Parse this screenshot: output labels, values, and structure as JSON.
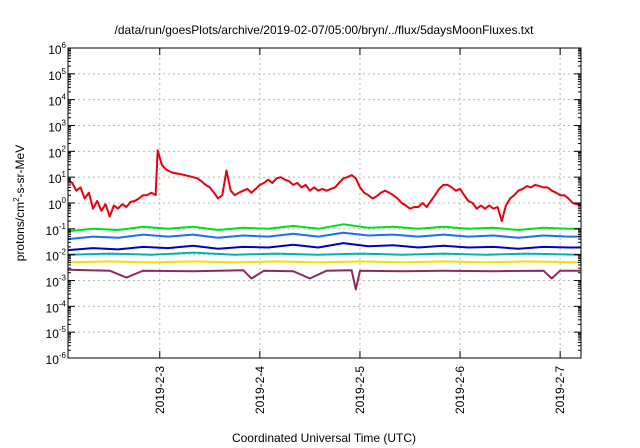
{
  "chart_data": {
    "type": "line",
    "title": "/data/run/goesPlots/archive/2019-02-07/05:00/bryn/../flux/5daysMoonFluxes.txt",
    "xlabel": "Coordinated Universal Time (UTC)",
    "ylabel": "protons/cm²-s-sr-MeV",
    "ylabel_parts": {
      "pre": "protons/cm",
      "sup": "2",
      "post": "-s-sr-MeV"
    },
    "y_scale": "log",
    "ylim": [
      1e-06,
      1000000.0
    ],
    "y_ticks": [
      {
        "exp": -6,
        "base": "10",
        "sup": "-6"
      },
      {
        "exp": -5,
        "base": "10",
        "sup": "-5"
      },
      {
        "exp": -4,
        "base": "10",
        "sup": "-4"
      },
      {
        "exp": -3,
        "base": "10",
        "sup": "-3"
      },
      {
        "exp": -2,
        "base": "10",
        "sup": "-2"
      },
      {
        "exp": -1,
        "base": "10",
        "sup": "-1"
      },
      {
        "exp": 0,
        "base": "10",
        "sup": "0"
      },
      {
        "exp": 1,
        "base": "10",
        "sup": "1"
      },
      {
        "exp": 2,
        "base": "10",
        "sup": "2"
      },
      {
        "exp": 3,
        "base": "10",
        "sup": "3"
      },
      {
        "exp": 4,
        "base": "10",
        "sup": "4"
      },
      {
        "exp": 5,
        "base": "10",
        "sup": "5"
      },
      {
        "exp": 6,
        "base": "10",
        "sup": "6"
      }
    ],
    "xlim": [
      "2019-02-02T02:00",
      "2019-02-07T05:00"
    ],
    "x_ticks": [
      {
        "label": "2019-2-3",
        "t": "2019-02-03T00:00"
      },
      {
        "label": "2019-2-4",
        "t": "2019-02-04T00:00"
      },
      {
        "label": "2019-2-5",
        "t": "2019-02-05T00:00"
      },
      {
        "label": "2019-2-6",
        "t": "2019-02-06T00:00"
      },
      {
        "label": "2019-2-7",
        "t": "2019-02-07T00:00"
      }
    ],
    "grid": true,
    "series": [
      {
        "color": "#e8000b",
        "values": [
          [
            "2019-02-02T02:00",
            8
          ],
          [
            "2019-02-02T03:00",
            6
          ],
          [
            "2019-02-02T04:00",
            3
          ],
          [
            "2019-02-02T05:00",
            4
          ],
          [
            "2019-02-02T06:00",
            1.5
          ],
          [
            "2019-02-02T07:00",
            2.5
          ],
          [
            "2019-02-02T08:00",
            0.6
          ],
          [
            "2019-02-02T09:00",
            1.2
          ],
          [
            "2019-02-02T10:00",
            0.5
          ],
          [
            "2019-02-02T11:00",
            0.9
          ],
          [
            "2019-02-02T12:00",
            0.3
          ],
          [
            "2019-02-02T13:00",
            0.8
          ],
          [
            "2019-02-02T14:00",
            0.6
          ],
          [
            "2019-02-02T15:00",
            0.9
          ],
          [
            "2019-02-02T16:00",
            0.7
          ],
          [
            "2019-02-02T17:00",
            1.1
          ],
          [
            "2019-02-02T18:00",
            1.2
          ],
          [
            "2019-02-02T19:00",
            1.5
          ],
          [
            "2019-02-02T20:00",
            2.0
          ],
          [
            "2019-02-02T21:00",
            2.0
          ],
          [
            "2019-02-02T22:00",
            2.5
          ],
          [
            "2019-02-02T23:00",
            2.0
          ],
          [
            "2019-02-02T23:30",
            110
          ],
          [
            "2019-02-03T00:30",
            30
          ],
          [
            "2019-02-03T01:30",
            20
          ],
          [
            "2019-02-03T02:00",
            18
          ],
          [
            "2019-02-03T03:00",
            15
          ],
          [
            "2019-02-03T04:00",
            14
          ],
          [
            "2019-02-03T05:00",
            13
          ],
          [
            "2019-02-03T06:00",
            12
          ],
          [
            "2019-02-03T07:00",
            11
          ],
          [
            "2019-02-03T08:00",
            10
          ],
          [
            "2019-02-03T09:00",
            9
          ],
          [
            "2019-02-03T10:00",
            7
          ],
          [
            "2019-02-03T11:00",
            5
          ],
          [
            "2019-02-03T12:00",
            4
          ],
          [
            "2019-02-03T13:00",
            2.5
          ],
          [
            "2019-02-03T14:00",
            1.5
          ],
          [
            "2019-02-03T15:00",
            2
          ],
          [
            "2019-02-03T16:00",
            18
          ],
          [
            "2019-02-03T17:00",
            3
          ],
          [
            "2019-02-03T18:00",
            2
          ],
          [
            "2019-02-03T19:00",
            2.5
          ],
          [
            "2019-02-03T20:00",
            3
          ],
          [
            "2019-02-03T21:00",
            3.5
          ],
          [
            "2019-02-03T22:00",
            2.5
          ],
          [
            "2019-02-03T23:00",
            3.5
          ],
          [
            "2019-02-04T00:00",
            5
          ],
          [
            "2019-02-04T01:00",
            6
          ],
          [
            "2019-02-04T02:00",
            8
          ],
          [
            "2019-02-04T03:00",
            6
          ],
          [
            "2019-02-04T04:00",
            9
          ],
          [
            "2019-02-04T05:00",
            10
          ],
          [
            "2019-02-04T06:00",
            8
          ],
          [
            "2019-02-04T07:00",
            7
          ],
          [
            "2019-02-04T08:00",
            5
          ],
          [
            "2019-02-04T09:00",
            6
          ],
          [
            "2019-02-04T10:00",
            4
          ],
          [
            "2019-02-04T11:00",
            5
          ],
          [
            "2019-02-04T12:00",
            3
          ],
          [
            "2019-02-04T13:00",
            4
          ],
          [
            "2019-02-04T14:00",
            3
          ],
          [
            "2019-02-04T15:00",
            3.5
          ],
          [
            "2019-02-04T16:00",
            3
          ],
          [
            "2019-02-04T17:00",
            3.5
          ],
          [
            "2019-02-04T18:00",
            4
          ],
          [
            "2019-02-04T19:00",
            6
          ],
          [
            "2019-02-04T20:00",
            9
          ],
          [
            "2019-02-04T21:00",
            10
          ],
          [
            "2019-02-04T22:00",
            12
          ],
          [
            "2019-02-04T23:00",
            9
          ],
          [
            "2019-02-05T00:00",
            4
          ],
          [
            "2019-02-05T01:00",
            2.5
          ],
          [
            "2019-02-05T02:00",
            2
          ],
          [
            "2019-02-05T03:00",
            1.5
          ],
          [
            "2019-02-05T04:00",
            1.8
          ],
          [
            "2019-02-05T05:00",
            2.5
          ],
          [
            "2019-02-05T06:00",
            3
          ],
          [
            "2019-02-05T07:00",
            2.5
          ],
          [
            "2019-02-05T08:00",
            2
          ],
          [
            "2019-02-05T09:00",
            1.5
          ],
          [
            "2019-02-05T10:00",
            1
          ],
          [
            "2019-02-05T11:00",
            0.8
          ],
          [
            "2019-02-05T12:00",
            0.6
          ],
          [
            "2019-02-05T13:00",
            0.7
          ],
          [
            "2019-02-05T14:00",
            0.7
          ],
          [
            "2019-02-05T15:00",
            1
          ],
          [
            "2019-02-05T16:00",
            0.7
          ],
          [
            "2019-02-05T17:00",
            1.2
          ],
          [
            "2019-02-05T18:00",
            2
          ],
          [
            "2019-02-05T19:00",
            3.5
          ],
          [
            "2019-02-05T20:00",
            5
          ],
          [
            "2019-02-05T21:00",
            5
          ],
          [
            "2019-02-05T22:00",
            4
          ],
          [
            "2019-02-05T23:00",
            3
          ],
          [
            "2019-02-06T00:00",
            3.5
          ],
          [
            "2019-02-06T01:00",
            2
          ],
          [
            "2019-02-06T02:00",
            1.2
          ],
          [
            "2019-02-06T03:00",
            1
          ],
          [
            "2019-02-06T04:00",
            0.6
          ],
          [
            "2019-02-06T05:00",
            0.8
          ],
          [
            "2019-02-06T06:00",
            0.6
          ],
          [
            "2019-02-06T07:00",
            0.8
          ],
          [
            "2019-02-06T08:00",
            0.6
          ],
          [
            "2019-02-06T09:00",
            0.7
          ],
          [
            "2019-02-06T10:00",
            0.2
          ],
          [
            "2019-02-06T11:00",
            0.8
          ],
          [
            "2019-02-06T12:00",
            1.5
          ],
          [
            "2019-02-06T13:00",
            2
          ],
          [
            "2019-02-06T14:00",
            3
          ],
          [
            "2019-02-06T15:00",
            3.5
          ],
          [
            "2019-02-06T16:00",
            4.5
          ],
          [
            "2019-02-06T17:00",
            4
          ],
          [
            "2019-02-06T18:00",
            5
          ],
          [
            "2019-02-06T19:00",
            4.5
          ],
          [
            "2019-02-06T20:00",
            4
          ],
          [
            "2019-02-06T21:00",
            4
          ],
          [
            "2019-02-06T22:00",
            3
          ],
          [
            "2019-02-06T23:00",
            2.5
          ],
          [
            "2019-02-07T00:00",
            2
          ],
          [
            "2019-02-07T01:00",
            2
          ],
          [
            "2019-02-07T02:00",
            1.5
          ],
          [
            "2019-02-07T03:00",
            1.0
          ],
          [
            "2019-02-07T04:00",
            0.9
          ],
          [
            "2019-02-07T05:00",
            0.8
          ]
        ]
      },
      {
        "color": "#00e01a",
        "values": [
          [
            "2019-02-02T02:00",
            0.08
          ],
          [
            "2019-02-02T08:00",
            0.1
          ],
          [
            "2019-02-02T14:00",
            0.09
          ],
          [
            "2019-02-02T20:00",
            0.12
          ],
          [
            "2019-02-03T02:00",
            0.1
          ],
          [
            "2019-02-03T08:00",
            0.12
          ],
          [
            "2019-02-03T14:00",
            0.09
          ],
          [
            "2019-02-03T20:00",
            0.11
          ],
          [
            "2019-02-04T02:00",
            0.1
          ],
          [
            "2019-02-04T08:00",
            0.13
          ],
          [
            "2019-02-04T14:00",
            0.1
          ],
          [
            "2019-02-04T20:00",
            0.15
          ],
          [
            "2019-02-05T02:00",
            0.11
          ],
          [
            "2019-02-05T08:00",
            0.12
          ],
          [
            "2019-02-05T14:00",
            0.1
          ],
          [
            "2019-02-05T20:00",
            0.12
          ],
          [
            "2019-02-06T02:00",
            0.1
          ],
          [
            "2019-02-06T08:00",
            0.11
          ],
          [
            "2019-02-06T14:00",
            0.09
          ],
          [
            "2019-02-06T20:00",
            0.11
          ],
          [
            "2019-02-07T02:00",
            0.1
          ],
          [
            "2019-02-07T05:00",
            0.1
          ]
        ]
      },
      {
        "color": "#1e6cff",
        "values": [
          [
            "2019-02-02T02:00",
            0.04
          ],
          [
            "2019-02-02T08:00",
            0.05
          ],
          [
            "2019-02-02T14:00",
            0.045
          ],
          [
            "2019-02-02T20:00",
            0.06
          ],
          [
            "2019-02-03T02:00",
            0.05
          ],
          [
            "2019-02-03T08:00",
            0.06
          ],
          [
            "2019-02-03T14:00",
            0.045
          ],
          [
            "2019-02-03T20:00",
            0.055
          ],
          [
            "2019-02-04T02:00",
            0.05
          ],
          [
            "2019-02-04T08:00",
            0.065
          ],
          [
            "2019-02-04T14:00",
            0.05
          ],
          [
            "2019-02-04T20:00",
            0.07
          ],
          [
            "2019-02-05T02:00",
            0.055
          ],
          [
            "2019-02-05T08:00",
            0.06
          ],
          [
            "2019-02-05T14:00",
            0.05
          ],
          [
            "2019-02-05T20:00",
            0.06
          ],
          [
            "2019-02-06T02:00",
            0.05
          ],
          [
            "2019-02-06T08:00",
            0.055
          ],
          [
            "2019-02-06T14:00",
            0.045
          ],
          [
            "2019-02-06T20:00",
            0.055
          ],
          [
            "2019-02-07T02:00",
            0.05
          ],
          [
            "2019-02-07T05:00",
            0.05
          ]
        ]
      },
      {
        "color": "#0000c8",
        "values": [
          [
            "2019-02-02T02:00",
            0.015
          ],
          [
            "2019-02-02T08:00",
            0.018
          ],
          [
            "2019-02-02T14:00",
            0.016
          ],
          [
            "2019-02-02T20:00",
            0.02
          ],
          [
            "2019-02-03T02:00",
            0.018
          ],
          [
            "2019-02-03T08:00",
            0.022
          ],
          [
            "2019-02-03T14:00",
            0.017
          ],
          [
            "2019-02-03T20:00",
            0.02
          ],
          [
            "2019-02-04T02:00",
            0.019
          ],
          [
            "2019-02-04T08:00",
            0.024
          ],
          [
            "2019-02-04T14:00",
            0.019
          ],
          [
            "2019-02-04T20:00",
            0.028
          ],
          [
            "2019-02-05T02:00",
            0.021
          ],
          [
            "2019-02-05T08:00",
            0.023
          ],
          [
            "2019-02-05T14:00",
            0.019
          ],
          [
            "2019-02-05T20:00",
            0.022
          ],
          [
            "2019-02-06T02:00",
            0.019
          ],
          [
            "2019-02-06T08:00",
            0.02
          ],
          [
            "2019-02-06T14:00",
            0.017
          ],
          [
            "2019-02-06T20:00",
            0.02
          ],
          [
            "2019-02-07T02:00",
            0.019
          ],
          [
            "2019-02-07T05:00",
            0.019
          ]
        ]
      },
      {
        "color": "#00b4b4",
        "values": [
          [
            "2019-02-02T02:00",
            0.01
          ],
          [
            "2019-02-02T12:00",
            0.011
          ],
          [
            "2019-02-02T22:00",
            0.01
          ],
          [
            "2019-02-03T08:00",
            0.012
          ],
          [
            "2019-02-03T18:00",
            0.01
          ],
          [
            "2019-02-04T04:00",
            0.011
          ],
          [
            "2019-02-04T14:00",
            0.01
          ],
          [
            "2019-02-05T00:00",
            0.011
          ],
          [
            "2019-02-05T10:00",
            0.01
          ],
          [
            "2019-02-05T20:00",
            0.011
          ],
          [
            "2019-02-06T06:00",
            0.01
          ],
          [
            "2019-02-06T16:00",
            0.011
          ],
          [
            "2019-02-07T05:00",
            0.01
          ]
        ]
      },
      {
        "color": "#f0e000",
        "values": [
          [
            "2019-02-02T02:00",
            0.005
          ],
          [
            "2019-02-02T12:00",
            0.0055
          ],
          [
            "2019-02-02T22:00",
            0.005
          ],
          [
            "2019-02-03T08:00",
            0.0055
          ],
          [
            "2019-02-03T18:00",
            0.005
          ],
          [
            "2019-02-04T04:00",
            0.0055
          ],
          [
            "2019-02-04T14:00",
            0.005
          ],
          [
            "2019-02-05T00:00",
            0.0055
          ],
          [
            "2019-02-05T10:00",
            0.005
          ],
          [
            "2019-02-05T20:00",
            0.0055
          ],
          [
            "2019-02-06T06:00",
            0.005
          ],
          [
            "2019-02-06T16:00",
            0.0055
          ],
          [
            "2019-02-07T05:00",
            0.005
          ]
        ]
      },
      {
        "color": "#8b2a62",
        "values": [
          [
            "2019-02-02T02:00",
            0.0026
          ],
          [
            "2019-02-02T12:00",
            0.0024
          ],
          [
            "2019-02-02T16:00",
            0.0013
          ],
          [
            "2019-02-02T20:00",
            0.0024
          ],
          [
            "2019-02-03T08:00",
            0.0023
          ],
          [
            "2019-02-03T20:00",
            0.0025
          ],
          [
            "2019-02-03T22:00",
            0.0012
          ],
          [
            "2019-02-04T01:00",
            0.0024
          ],
          [
            "2019-02-04T08:00",
            0.0023
          ],
          [
            "2019-02-04T12:00",
            0.0012
          ],
          [
            "2019-02-04T16:00",
            0.0024
          ],
          [
            "2019-02-04T22:00",
            0.0025
          ],
          [
            "2019-02-04T23:00",
            0.00045
          ],
          [
            "2019-02-05T00:00",
            0.0024
          ],
          [
            "2019-02-05T10:00",
            0.0023
          ],
          [
            "2019-02-05T20:00",
            0.0024
          ],
          [
            "2019-02-06T08:00",
            0.0023
          ],
          [
            "2019-02-06T20:00",
            0.0024
          ],
          [
            "2019-02-06T22:00",
            0.0012
          ],
          [
            "2019-02-07T00:00",
            0.0024
          ],
          [
            "2019-02-07T05:00",
            0.0024
          ]
        ]
      }
    ]
  }
}
